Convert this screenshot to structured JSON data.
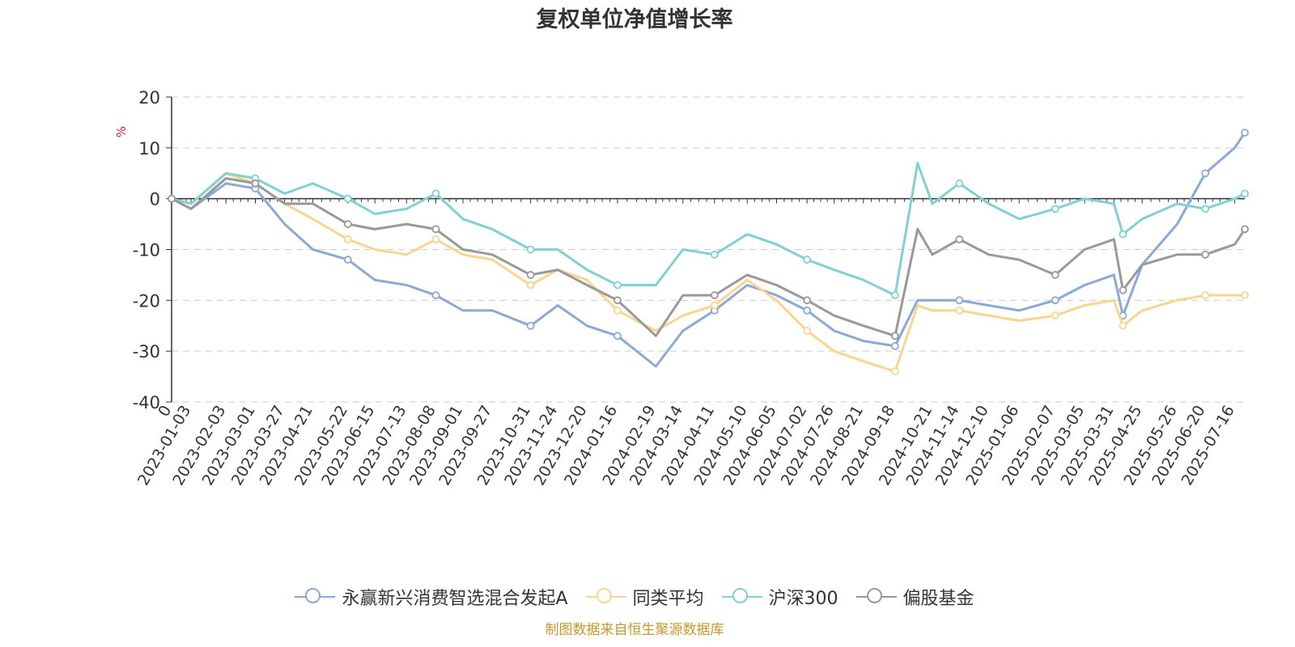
{
  "chart_data": {
    "type": "line",
    "title": "复权单位净值增长率",
    "ylabel": "%",
    "ylim": [
      -40,
      20
    ],
    "yticks": [
      20,
      10,
      0,
      -10,
      -20,
      -30,
      -40
    ],
    "grid": true,
    "legend_position": "bottom",
    "x_tick_labels": [
      "0",
      "2023-01-03",
      "2023-02-03",
      "2023-03-01",
      "2023-03-27",
      "2023-04-21",
      "2023-05-22",
      "2023-06-15",
      "2023-07-13",
      "2023-08-08",
      "2023-09-01",
      "2023-09-27",
      "2023-10-31",
      "2023-11-24",
      "2023-12-20",
      "2024-01-16",
      "2024-02-19",
      "2024-03-14",
      "2024-04-11",
      "2024-05-10",
      "2024-06-05",
      "2024-07-02",
      "2024-07-26",
      "2024-08-21",
      "2024-09-18",
      "2024-10-21",
      "2024-11-14",
      "2024-12-10",
      "2025-01-06",
      "2025-02-07",
      "2025-03-05",
      "2025-03-31",
      "2025-04-25",
      "2025-05-26",
      "2025-06-20",
      "2025-07-16"
    ],
    "x": [
      "0",
      "2023-01-03",
      "2023-02-03",
      "2023-03-01",
      "2023-03-27",
      "2023-04-21",
      "2023-05-22",
      "2023-06-15",
      "2023-07-13",
      "2023-08-08",
      "2023-09-01",
      "2023-09-27",
      "2023-10-31",
      "2023-11-24",
      "2023-12-20",
      "2024-01-16",
      "2024-02-19",
      "2024-03-14",
      "2024-04-11",
      "2024-05-10",
      "2024-06-05",
      "2024-07-02",
      "2024-07-26",
      "2024-08-21",
      "2024-09-18",
      "2024-10-08",
      "2024-10-21",
      "2024-11-14",
      "2024-12-10",
      "2025-01-06",
      "2025-02-07",
      "2025-03-05",
      "2025-03-31",
      "2025-04-08",
      "2025-04-25",
      "2025-05-26",
      "2025-06-20",
      "2025-07-16",
      "2025-07-25"
    ],
    "series": [
      {
        "name": "永赢新兴消费智选混合发起A",
        "color": "#8aa9d6",
        "values": [
          0,
          -2,
          3,
          2,
          -5,
          -10,
          -12,
          -16,
          -17,
          -19,
          -22,
          -22,
          -25,
          -21,
          -25,
          -27,
          -33,
          -26,
          -22,
          -17,
          -19,
          -22,
          -26,
          -28,
          -29,
          -20,
          -20,
          -20,
          -21,
          -22,
          -20,
          -17,
          -15,
          -23,
          -13,
          -5,
          5,
          10,
          13
        ]
      },
      {
        "name": "同类平均",
        "color": "#fcd48e",
        "values": [
          0,
          -1,
          5,
          3,
          -1,
          -4,
          -8,
          -10,
          -11,
          -8,
          -11,
          -12,
          -17,
          -14,
          -16,
          -22,
          -26,
          -23,
          -21,
          -16,
          -20,
          -26,
          -30,
          -32,
          -34,
          -21,
          -22,
          -22,
          -23,
          -24,
          -23,
          -21,
          -20,
          -25,
          -22,
          -20,
          -19,
          -19,
          -19
        ]
      },
      {
        "name": "沪深300",
        "color": "#80d1d1",
        "values": [
          0,
          -1,
          5,
          4,
          1,
          3,
          0,
          -3,
          -2,
          1,
          -4,
          -6,
          -10,
          -10,
          -14,
          -17,
          -17,
          -10,
          -11,
          -7,
          -9,
          -12,
          -14,
          -16,
          -19,
          7,
          -1,
          3,
          -1,
          -4,
          -2,
          0,
          -1,
          -7,
          -4,
          -1,
          -2,
          0,
          1
        ]
      },
      {
        "name": "偏股基金",
        "color": "#999999",
        "values": [
          0,
          -2,
          4,
          3,
          -1,
          -1,
          -5,
          -6,
          -5,
          -6,
          -10,
          -11,
          -15,
          -14,
          -17,
          -20,
          -27,
          -19,
          -19,
          -15,
          -17,
          -20,
          -23,
          -25,
          -27,
          -6,
          -11,
          -8,
          -11,
          -12,
          -15,
          -10,
          -8,
          -18,
          -13,
          -11,
          -11,
          -9,
          -6
        ]
      }
    ]
  },
  "source_note": "制图数据来自恒生聚源数据库"
}
